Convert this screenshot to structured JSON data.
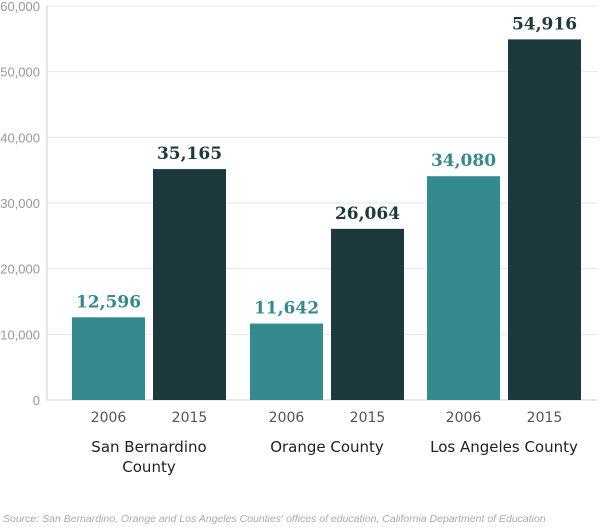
{
  "chart_data": {
    "type": "bar",
    "series": [
      {
        "name": "2006",
        "values": [
          12596,
          11642,
          34080
        ]
      },
      {
        "name": "2015",
        "values": [
          35165,
          26064,
          54916
        ]
      }
    ],
    "groups": [
      {
        "label_lines": [
          "San Bernardino",
          "County"
        ],
        "years": [
          "2006",
          "2015"
        ],
        "value_labels": [
          "12,596",
          "35,165"
        ]
      },
      {
        "label_lines": [
          "Orange County"
        ],
        "years": [
          "2006",
          "2015"
        ],
        "value_labels": [
          "11,642",
          "26,064"
        ]
      },
      {
        "label_lines": [
          "Los Angeles County"
        ],
        "years": [
          "2006",
          "2015"
        ],
        "value_labels": [
          "34,080",
          "54,916"
        ]
      }
    ],
    "y_ticks": [
      0,
      10000,
      20000,
      30000,
      40000,
      50000,
      60000
    ],
    "y_tick_labels": [
      "0",
      "10,000",
      "20,000",
      "30,000",
      "40,000",
      "50,000",
      "60,000"
    ],
    "ylim": [
      0,
      60000
    ],
    "grid": true,
    "colors": {
      "2006": "#348a8e",
      "2015": "#1c3a3d"
    },
    "label_colors": {
      "2006": "#348a8e",
      "2015": "#1c3a3d"
    }
  },
  "source": "Source: San Bernardino, Orange and Los Angeles Counties' offices of education, California Department of Education"
}
